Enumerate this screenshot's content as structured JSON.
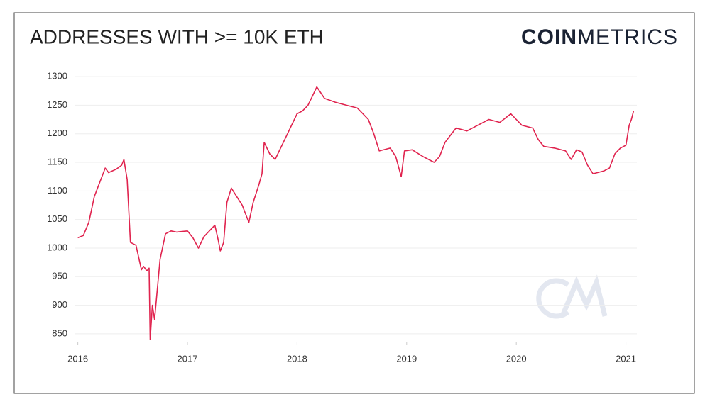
{
  "chart_data": {
    "type": "line",
    "title": "ADDRESSES WITH >= 10K ETH",
    "brand": [
      "COIN",
      "METRICS"
    ],
    "xlim": [
      2015.97,
      2021.1
    ],
    "ylim": [
      835,
      1310
    ],
    "xticks": [
      2016,
      2017,
      2018,
      2019,
      2020,
      2021
    ],
    "yticks": [
      850,
      900,
      950,
      1000,
      1050,
      1100,
      1150,
      1200,
      1250,
      1300
    ],
    "grid": true,
    "series": [
      {
        "color": "#e0234e",
        "x": [
          2016.0,
          2016.05,
          2016.1,
          2016.15,
          2016.2,
          2016.25,
          2016.28,
          2016.35,
          2016.4,
          2016.42,
          2016.45,
          2016.48,
          2016.53,
          2016.58,
          2016.6,
          2016.63,
          2016.65,
          2016.66,
          2016.68,
          2016.7,
          2016.75,
          2016.8,
          2016.85,
          2016.9,
          2017.0,
          2017.05,
          2017.1,
          2017.15,
          2017.2,
          2017.25,
          2017.28,
          2017.3,
          2017.33,
          2017.36,
          2017.4,
          2017.45,
          2017.5,
          2017.53,
          2017.56,
          2017.6,
          2017.65,
          2017.68,
          2017.7,
          2017.75,
          2017.8,
          2017.85,
          2017.9,
          2018.0,
          2018.05,
          2018.1,
          2018.15,
          2018.18,
          2018.25,
          2018.35,
          2018.45,
          2018.55,
          2018.65,
          2018.7,
          2018.75,
          2018.85,
          2018.9,
          2018.95,
          2018.98,
          2019.05,
          2019.15,
          2019.25,
          2019.3,
          2019.35,
          2019.45,
          2019.55,
          2019.65,
          2019.75,
          2019.85,
          2019.95,
          2020.0,
          2020.05,
          2020.15,
          2020.2,
          2020.25,
          2020.35,
          2020.45,
          2020.5,
          2020.55,
          2020.6,
          2020.65,
          2020.7,
          2020.8,
          2020.85,
          2020.9,
          2020.95,
          2021.0,
          2021.03,
          2021.05,
          2021.07
        ],
        "values": [
          1018,
          1022,
          1045,
          1090,
          1115,
          1140,
          1132,
          1138,
          1145,
          1155,
          1120,
          1010,
          1005,
          962,
          968,
          960,
          965,
          840,
          900,
          875,
          980,
          1025,
          1030,
          1028,
          1030,
          1018,
          1000,
          1020,
          1030,
          1040,
          1015,
          995,
          1010,
          1080,
          1105,
          1090,
          1075,
          1060,
          1045,
          1080,
          1110,
          1130,
          1185,
          1165,
          1155,
          1175,
          1195,
          1235,
          1240,
          1250,
          1270,
          1282,
          1262,
          1255,
          1250,
          1245,
          1225,
          1200,
          1170,
          1175,
          1160,
          1125,
          1170,
          1172,
          1160,
          1150,
          1160,
          1185,
          1210,
          1205,
          1215,
          1225,
          1220,
          1235,
          1225,
          1215,
          1210,
          1190,
          1178,
          1175,
          1170,
          1155,
          1172,
          1168,
          1145,
          1130,
          1135,
          1140,
          1165,
          1175,
          1180,
          1215,
          1225,
          1240
        ]
      }
    ]
  }
}
